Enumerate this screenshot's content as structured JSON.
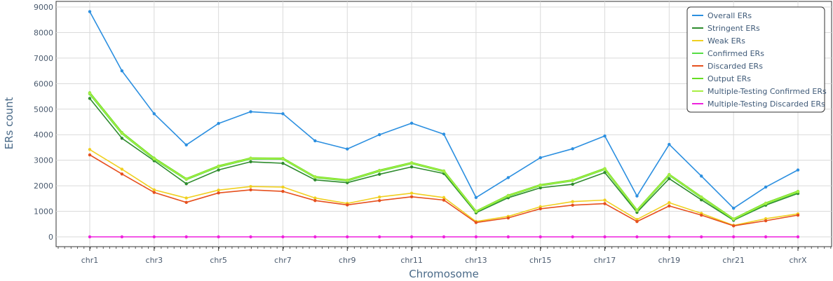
{
  "chart_data": {
    "type": "line",
    "xlabel": "Chromosome",
    "ylabel": "ERs count",
    "ylim": [
      0,
      9000
    ],
    "yticks": [
      0,
      1000,
      2000,
      3000,
      4000,
      5000,
      6000,
      7000,
      8000,
      9000
    ],
    "categories": [
      "chr1",
      "chr2",
      "chr3",
      "chr4",
      "chr5",
      "chr6",
      "chr7",
      "chr8",
      "chr9",
      "chr10",
      "chr11",
      "chr12",
      "chr13",
      "chr14",
      "chr15",
      "chr16",
      "chr17",
      "chr18",
      "chr19",
      "chr20",
      "chr21",
      "chr22",
      "chrX"
    ],
    "xtick_labels": [
      "chr1",
      "chr3",
      "chr5",
      "chr7",
      "chr9",
      "chr11",
      "chr13",
      "chr15",
      "chr17",
      "chr19",
      "chr21",
      "chrX"
    ],
    "grid": true,
    "legend_position": "top-right",
    "series": [
      {
        "name": "Overall ERs",
        "color": "#2b8fe0",
        "values": [
          8820,
          6500,
          4820,
          3600,
          4440,
          4900,
          4820,
          3760,
          3440,
          4000,
          4450,
          4020,
          1540,
          2320,
          3100,
          3450,
          3950,
          1600,
          3620,
          2380,
          1120,
          1950,
          2620
        ]
      },
      {
        "name": "Stringent ERs",
        "color": "#2e8b2e",
        "values": [
          5420,
          3860,
          2980,
          2080,
          2620,
          2940,
          2880,
          2230,
          2120,
          2450,
          2740,
          2480,
          940,
          1530,
          1920,
          2060,
          2520,
          960,
          2280,
          1450,
          650,
          1240,
          1700
        ]
      },
      {
        "name": "Weak ERs",
        "color": "#f0d020",
        "values": [
          3420,
          2650,
          1840,
          1520,
          1830,
          1970,
          1950,
          1520,
          1310,
          1560,
          1710,
          1540,
          600,
          800,
          1180,
          1380,
          1440,
          680,
          1340,
          920,
          450,
          710,
          900
        ]
      },
      {
        "name": "Confirmed ERs",
        "color": "#55dd44",
        "values": [
          5600,
          4050,
          3050,
          2250,
          2750,
          3060,
          3050,
          2330,
          2200,
          2580,
          2880,
          2560,
          990,
          1600,
          2010,
          2200,
          2650,
          1030,
          2420,
          1540,
          690,
          1300,
          1760
        ]
      },
      {
        "name": "Discarded ERs",
        "color": "#e6501e",
        "values": [
          3210,
          2460,
          1740,
          1350,
          1720,
          1840,
          1780,
          1420,
          1250,
          1420,
          1570,
          1440,
          560,
          740,
          1100,
          1240,
          1300,
          600,
          1210,
          850,
          430,
          630,
          850
        ]
      },
      {
        "name": "Output ERs",
        "color": "#66dd22",
        "values": [
          5640,
          4080,
          3080,
          2270,
          2770,
          3080,
          3070,
          2350,
          2220,
          2600,
          2900,
          2580,
          1000,
          1620,
          2030,
          2220,
          2670,
          1040,
          2440,
          1560,
          700,
          1320,
          1780
        ]
      },
      {
        "name": "Multiple-Testing Confirmed ERs",
        "color": "#a8ee44",
        "values": [
          5620,
          4060,
          3060,
          2260,
          2760,
          3070,
          3060,
          2340,
          2210,
          2590,
          2890,
          2570,
          995,
          1610,
          2020,
          2210,
          2660,
          1035,
          2430,
          1550,
          695,
          1310,
          1770
        ]
      },
      {
        "name": "Multiple-Testing Discarded ERs",
        "color": "#ee22dd",
        "values": [
          0,
          0,
          0,
          0,
          0,
          0,
          0,
          0,
          0,
          0,
          0,
          0,
          0,
          0,
          0,
          0,
          0,
          0,
          0,
          0,
          0,
          0,
          0
        ]
      }
    ]
  }
}
